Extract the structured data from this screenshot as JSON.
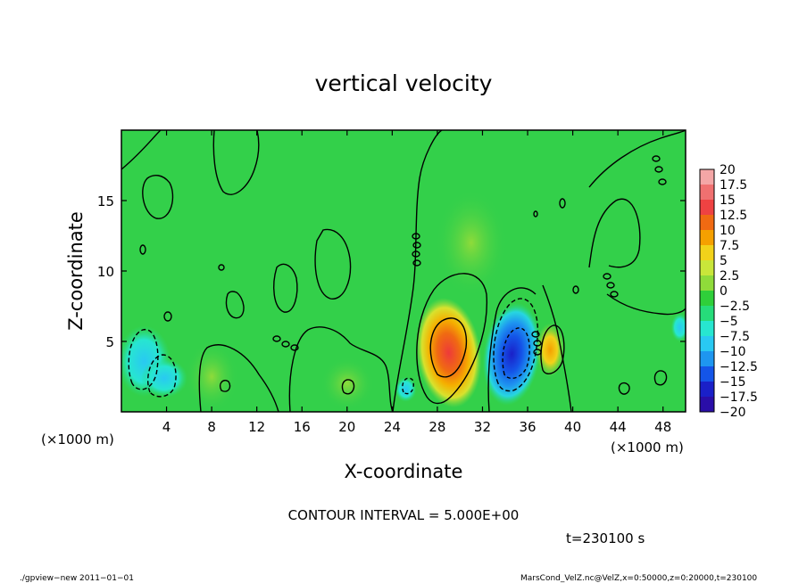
{
  "chart_data": {
    "type": "heatmap",
    "title": "vertical velocity",
    "xlabel": "X-coordinate",
    "ylabel": "Z-coordinate",
    "x_unit_label": "(×1000 m)",
    "y_unit_label": "(×1000 m)",
    "x_ticks": [
      4,
      8,
      12,
      16,
      20,
      24,
      28,
      32,
      36,
      40,
      44,
      48
    ],
    "y_ticks": [
      5,
      10,
      15
    ],
    "xlim": [
      0,
      50
    ],
    "ylim": [
      0,
      20
    ],
    "contour_interval_text": "CONTOUR INTERVAL = 5.000E+00",
    "time_text": "t=230100 s",
    "colorbar": {
      "labels": [
        "20",
        "17.5",
        "15",
        "12.5",
        "10",
        "7.5",
        "5",
        "2.5",
        "0",
        "−2.5",
        "−5",
        "−7.5",
        "−10",
        "−12.5",
        "−15",
        "−17.5",
        "−20"
      ],
      "bin_colors": [
        "#f4a6a6",
        "#f07070",
        "#ee4242",
        "#f06a12",
        "#f5a000",
        "#f2d21a",
        "#c9e63a",
        "#8fdb3a",
        "#2fcf3a",
        "#26dc7a",
        "#27e6d0",
        "#29c9f2",
        "#1e96f0",
        "#1455e8",
        "#1a20c8",
        "#2a0ea8"
      ]
    },
    "features": [
      {
        "name": "updraft core",
        "x": 29,
        "z": 4.3,
        "value": 15
      },
      {
        "name": "downdraft core",
        "x": 34.6,
        "z": 4.0,
        "value": -12
      },
      {
        "name": "updraft",
        "x": 37.8,
        "z": 4.6,
        "value": 8
      },
      {
        "name": "downdraft",
        "x": 2.5,
        "z": 3.5,
        "value": -6
      }
    ],
    "background_color": "#33d04a"
  },
  "footer": {
    "left": "./gpview−new   2011−01−01",
    "right": "MarsCond_VelZ.nc@VelZ,x=0:50000,z=0:20000,t=230100"
  }
}
